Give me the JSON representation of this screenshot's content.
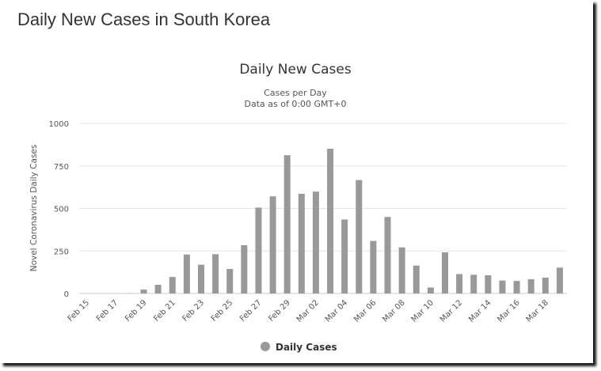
{
  "page": {
    "title": "Daily New Cases in South Korea"
  },
  "chart_data": {
    "type": "bar",
    "title": "Daily New Cases",
    "subtitle_lines": [
      "Cases per Day",
      "Data as of 0:00 GMT+0"
    ],
    "xlabel": "",
    "ylabel": "Novel Coronavirus Daily Cases",
    "ylim": [
      0,
      1000
    ],
    "yticks": [
      0,
      250,
      500,
      750,
      1000
    ],
    "grid": true,
    "legend_position": "bottom-center",
    "bar_color": "#999999",
    "categories": [
      "Feb 15",
      "Feb 16",
      "Feb 17",
      "Feb 18",
      "Feb 19",
      "Feb 20",
      "Feb 21",
      "Feb 22",
      "Feb 23",
      "Feb 24",
      "Feb 25",
      "Feb 26",
      "Feb 27",
      "Feb 28",
      "Feb 29",
      "Mar 01",
      "Mar 02",
      "Mar 03",
      "Mar 04",
      "Mar 05",
      "Mar 06",
      "Mar 07",
      "Mar 08",
      "Mar 09",
      "Mar 10",
      "Mar 11",
      "Mar 12",
      "Mar 13",
      "Mar 14",
      "Mar 15",
      "Mar 16",
      "Mar 17",
      "Mar 18",
      "Mar 19"
    ],
    "x_tick_labels": [
      "Feb 15",
      "Feb 17",
      "Feb 19",
      "Feb 21",
      "Feb 23",
      "Feb 25",
      "Feb 27",
      "Feb 29",
      "Mar 02",
      "Mar 04",
      "Mar 06",
      "Mar 08",
      "Mar 10",
      "Mar 12",
      "Mar 14",
      "Mar 16",
      "Mar 18"
    ],
    "series": [
      {
        "name": "Daily Cases",
        "values": [
          0,
          0,
          0,
          1,
          23,
          51,
          97,
          229,
          169,
          231,
          144,
          284,
          505,
          571,
          813,
          586,
          599,
          851,
          435,
          667,
          309,
          450,
          271,
          164,
          35,
          242,
          114,
          110,
          107,
          76,
          74,
          84,
          93,
          152
        ]
      }
    ]
  }
}
